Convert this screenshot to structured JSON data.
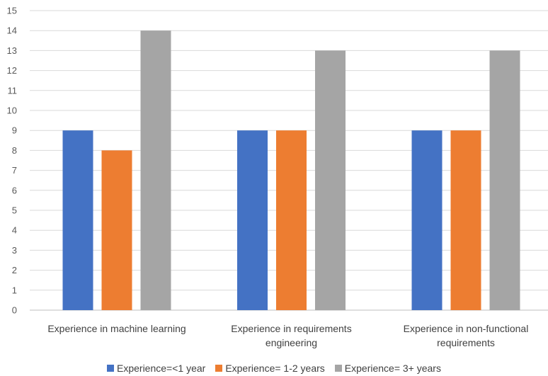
{
  "chart_data": {
    "type": "bar",
    "title": "",
    "xlabel": "",
    "ylabel": "",
    "categories": [
      [
        "Experience in machine learning"
      ],
      [
        "Experience in  requirements",
        "engineering"
      ],
      [
        "Experience in  non-functional",
        "requirements"
      ]
    ],
    "series": [
      {
        "name": "Experience=<1 year",
        "values": [
          9,
          9,
          9
        ],
        "color": "#4472C4"
      },
      {
        "name": "Experience= 1-2 years",
        "values": [
          8,
          9,
          9
        ],
        "color": "#ED7D31"
      },
      {
        "name": "Experience= 3+ years",
        "values": [
          14,
          13,
          13
        ],
        "color": "#A5A5A5"
      }
    ],
    "ylim": [
      0,
      15
    ],
    "yticks": [
      "0",
      "1",
      "2",
      "3",
      "4",
      "5",
      "6",
      "7",
      "8",
      "9",
      "10",
      "11",
      "12",
      "13",
      "14",
      "15"
    ],
    "grid": true,
    "legend": "bottom"
  }
}
